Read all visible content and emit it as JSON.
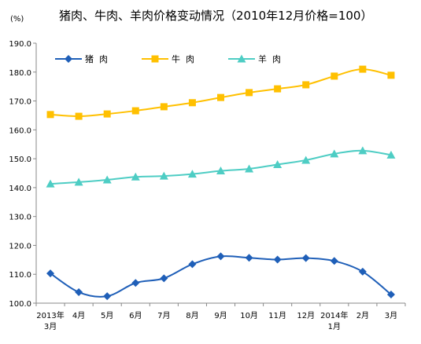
{
  "chart_data": {
    "type": "line",
    "title": "猪肉、牛肉、羊肉价格变动情况（2010年12月价格=100）",
    "unit": "(%)",
    "ylim": [
      100,
      190
    ],
    "yticks": [
      "100.0",
      "110.0",
      "120.0",
      "130.0",
      "140.0",
      "150.0",
      "160.0",
      "170.0",
      "180.0",
      "190.0"
    ],
    "categories": [
      [
        "2013年",
        "3月"
      ],
      [
        "4月"
      ],
      [
        "5月"
      ],
      [
        "6月"
      ],
      [
        "7月"
      ],
      [
        "8月"
      ],
      [
        "9月"
      ],
      [
        "10月"
      ],
      [
        "11月"
      ],
      [
        "12月"
      ],
      [
        "2014年",
        "1月"
      ],
      [
        "2月"
      ],
      [
        "3月"
      ]
    ],
    "legend_position": "top-left",
    "grid": false,
    "series": [
      {
        "name": "猪  肉",
        "color": "#1f5fb8",
        "marker": "diamond",
        "values": [
          110.3,
          103.8,
          102.4,
          107.0,
          108.6,
          113.5,
          116.2,
          115.7,
          115.1,
          115.6,
          114.6,
          110.9,
          103.0
        ]
      },
      {
        "name": "牛  肉",
        "color": "#ffc000",
        "marker": "square",
        "values": [
          165.3,
          164.7,
          165.5,
          166.6,
          168.0,
          169.4,
          171.2,
          172.9,
          174.2,
          175.6,
          178.6,
          181.0,
          178.9
        ]
      },
      {
        "name": "羊  肉",
        "color": "#4ecdc4",
        "marker": "triangle",
        "values": [
          141.3,
          141.9,
          142.7,
          143.7,
          144.0,
          144.7,
          145.8,
          146.5,
          148.0,
          149.5,
          151.7,
          152.8,
          151.3
        ]
      }
    ]
  }
}
